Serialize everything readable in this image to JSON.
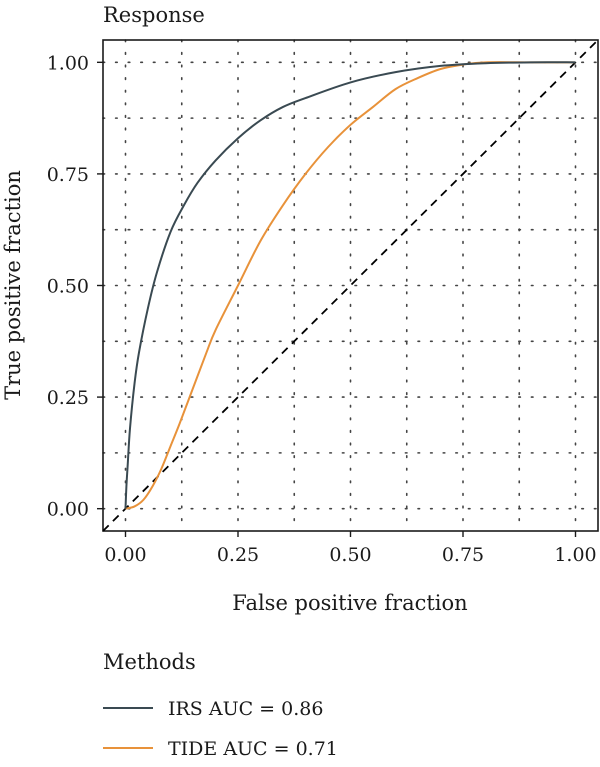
{
  "chart_data": {
    "type": "line",
    "title": "Response",
    "xlabel": "False positive fraction",
    "ylabel": "True positive fraction",
    "xlim": [
      -0.05,
      1.05
    ],
    "ylim": [
      -0.05,
      1.05
    ],
    "x_ticks": [
      0.0,
      0.25,
      0.5,
      0.75,
      1.0
    ],
    "x_tick_labels": [
      "0.00",
      "0.25",
      "0.50",
      "0.75",
      "1.00"
    ],
    "y_ticks": [
      0.0,
      0.25,
      0.5,
      0.75,
      1.0
    ],
    "y_tick_labels": [
      "0.00",
      "0.25",
      "0.50",
      "0.75",
      "1.00"
    ],
    "grid": true,
    "legend_title": "Methods",
    "legend_position": "bottom",
    "reference_line": {
      "x": [
        0,
        1
      ],
      "y": [
        0,
        1
      ],
      "style": "dashed",
      "color": "#000000"
    },
    "series": [
      {
        "name": "IRS AUC = 0.86",
        "color": "#3a4a52",
        "x": [
          0.0,
          0.002,
          0.005,
          0.01,
          0.02,
          0.03,
          0.05,
          0.07,
          0.1,
          0.13,
          0.16,
          0.2,
          0.25,
          0.3,
          0.35,
          0.4,
          0.5,
          0.6,
          0.7,
          0.8,
          0.9,
          1.0
        ],
        "y": [
          0.0,
          0.05,
          0.1,
          0.18,
          0.28,
          0.35,
          0.45,
          0.53,
          0.62,
          0.68,
          0.73,
          0.78,
          0.83,
          0.87,
          0.9,
          0.92,
          0.955,
          0.978,
          0.992,
          0.998,
          1.0,
          1.0
        ]
      },
      {
        "name": "TIDE AUC = 0.71",
        "color": "#e8923a",
        "x": [
          0.0,
          0.02,
          0.04,
          0.06,
          0.08,
          0.1,
          0.12,
          0.15,
          0.18,
          0.2,
          0.25,
          0.3,
          0.35,
          0.4,
          0.45,
          0.5,
          0.55,
          0.6,
          0.65,
          0.7,
          0.75,
          0.8,
          0.9,
          1.0
        ],
        "y": [
          0.0,
          0.005,
          0.02,
          0.05,
          0.09,
          0.14,
          0.19,
          0.27,
          0.35,
          0.4,
          0.5,
          0.6,
          0.68,
          0.75,
          0.81,
          0.86,
          0.9,
          0.94,
          0.965,
          0.985,
          0.995,
          1.0,
          1.0,
          1.0
        ]
      }
    ]
  }
}
